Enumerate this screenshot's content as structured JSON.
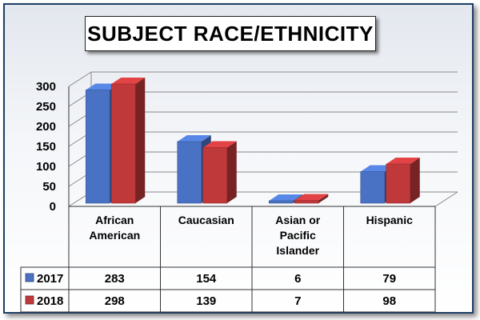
{
  "chart_data": {
    "type": "bar",
    "title": "SUBJECT RACE/ETHNICITY",
    "categories": [
      "African American",
      "Caucasian",
      "Asian or Pacific Islander",
      "Hispanic"
    ],
    "category_lines": [
      [
        "African",
        "American"
      ],
      [
        "Caucasian"
      ],
      [
        "Asian or",
        "Pacific",
        "Islander"
      ],
      [
        "Hispanic"
      ]
    ],
    "series": [
      {
        "name": "2017",
        "values": [
          283,
          154,
          6,
          79
        ],
        "color": "#4a72c4"
      },
      {
        "name": "2018",
        "values": [
          298,
          139,
          7,
          98
        ],
        "color": "#c0393a"
      }
    ],
    "ylim": [
      0,
      300
    ],
    "yticks": [
      0,
      50,
      100,
      150,
      200,
      250,
      300
    ],
    "grid": true,
    "legend": "data-table"
  }
}
